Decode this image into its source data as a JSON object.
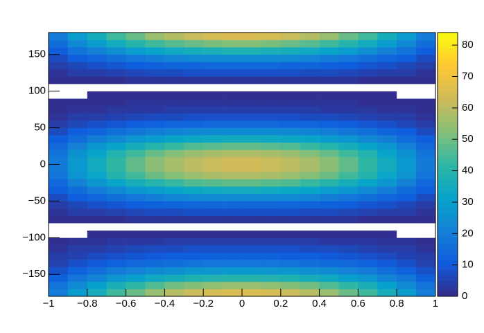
{
  "chart_data": {
    "type": "heatmap",
    "xbins": [
      -1,
      -0.9,
      -0.8,
      -0.7,
      -0.6,
      -0.5,
      -0.4,
      -0.3,
      -0.2,
      -0.1,
      0,
      0.1,
      0.2,
      0.3,
      0.4,
      0.5,
      0.6,
      0.7,
      0.8,
      0.9,
      1
    ],
    "ybins": [
      -180,
      -170,
      -160,
      -150,
      -140,
      -130,
      -120,
      -110,
      -100,
      -90,
      -80,
      -70,
      -60,
      -50,
      -40,
      -30,
      -20,
      -10,
      0,
      10,
      20,
      30,
      40,
      50,
      60,
      70,
      80,
      90,
      100,
      110,
      120,
      130,
      140,
      150,
      160,
      170,
      180
    ],
    "z": [
      [
        20,
        29,
        36,
        44,
        49,
        55,
        59,
        62,
        64,
        65,
        65,
        64,
        62,
        59,
        55,
        49,
        44,
        36,
        29,
        20
      ],
      [
        17,
        24,
        31,
        37,
        42,
        46,
        50,
        52,
        54,
        55,
        55,
        54,
        52,
        50,
        46,
        42,
        37,
        31,
        24,
        17
      ],
      [
        12,
        18,
        22,
        27,
        30,
        34,
        36,
        38,
        39,
        40,
        40,
        39,
        38,
        36,
        34,
        30,
        27,
        22,
        18,
        12
      ],
      [
        8,
        12,
        16,
        19,
        21,
        24,
        25,
        27,
        27,
        28,
        28,
        27,
        27,
        25,
        24,
        21,
        19,
        16,
        12,
        8
      ],
      [
        5,
        8,
        10,
        12,
        14,
        15,
        16,
        17,
        18,
        18,
        18,
        18,
        17,
        16,
        15,
        14,
        12,
        10,
        8,
        5
      ],
      [
        4,
        5,
        7,
        8,
        9,
        10,
        11,
        11,
        12,
        12,
        12,
        12,
        11,
        11,
        10,
        9,
        8,
        7,
        5,
        4
      ],
      [
        2,
        4,
        4,
        5,
        6,
        7,
        7,
        8,
        8,
        8,
        8,
        8,
        8,
        7,
        7,
        6,
        5,
        4,
        4,
        2
      ],
      [
        1,
        2,
        2,
        3,
        3,
        3,
        4,
        4,
        4,
        4,
        4,
        4,
        4,
        4,
        3,
        3,
        3,
        2,
        2,
        1
      ],
      [
        0,
        0,
        1,
        1,
        1,
        1,
        1,
        1,
        1,
        1,
        1,
        1,
        1,
        1,
        1,
        1,
        1,
        1,
        0,
        0
      ],
      [
        0,
        0,
        0,
        0,
        0,
        0,
        0,
        0,
        0,
        0,
        0,
        0,
        0,
        0,
        0,
        0,
        0,
        0,
        0,
        0
      ],
      [
        1,
        1,
        1,
        1,
        2,
        2,
        2,
        2,
        2,
        2,
        2,
        2,
        2,
        2,
        2,
        2,
        1,
        1,
        1,
        1
      ],
      [
        2,
        4,
        4,
        5,
        6,
        7,
        7,
        8,
        8,
        8,
        8,
        8,
        8,
        7,
        7,
        6,
        5,
        4,
        4,
        2
      ],
      [
        4,
        6,
        8,
        9,
        11,
        12,
        13,
        13,
        14,
        14,
        14,
        14,
        13,
        13,
        12,
        11,
        9,
        8,
        6,
        4
      ],
      [
        7,
        11,
        13,
        16,
        18,
        20,
        22,
        23,
        24,
        24,
        24,
        24,
        23,
        22,
        20,
        18,
        16,
        13,
        11,
        7
      ],
      [
        11,
        15,
        20,
        23,
        27,
        29,
        32,
        33,
        34,
        35,
        35,
        34,
        33,
        32,
        29,
        27,
        23,
        20,
        15,
        11
      ],
      [
        14,
        21,
        27,
        32,
        36,
        40,
        43,
        46,
        47,
        48,
        48,
        47,
        46,
        43,
        40,
        36,
        32,
        27,
        21,
        14
      ],
      [
        17,
        26,
        32,
        39,
        44,
        49,
        52,
        55,
        57,
        58,
        58,
        57,
        55,
        52,
        49,
        44,
        39,
        32,
        26,
        17
      ],
      [
        19,
        28,
        35,
        42,
        48,
        53,
        57,
        60,
        62,
        63,
        63,
        62,
        60,
        57,
        53,
        48,
        42,
        35,
        28,
        19
      ],
      [
        19,
        28,
        35,
        42,
        48,
        53,
        57,
        60,
        62,
        63,
        63,
        62,
        60,
        57,
        53,
        48,
        42,
        35,
        28,
        19
      ],
      [
        17,
        26,
        32,
        39,
        44,
        49,
        52,
        55,
        57,
        58,
        58,
        57,
        55,
        52,
        49,
        44,
        39,
        32,
        26,
        17
      ],
      [
        14,
        21,
        27,
        32,
        36,
        40,
        43,
        46,
        47,
        48,
        48,
        47,
        46,
        43,
        40,
        36,
        32,
        27,
        21,
        14
      ],
      [
        11,
        15,
        20,
        23,
        27,
        29,
        32,
        33,
        34,
        35,
        35,
        34,
        33,
        32,
        29,
        27,
        23,
        20,
        15,
        11
      ],
      [
        7,
        11,
        13,
        16,
        18,
        20,
        22,
        23,
        24,
        24,
        24,
        24,
        23,
        22,
        20,
        18,
        16,
        13,
        11,
        7
      ],
      [
        4,
        6,
        8,
        9,
        11,
        12,
        13,
        13,
        14,
        14,
        14,
        14,
        13,
        13,
        12,
        11,
        9,
        8,
        6,
        4
      ],
      [
        2,
        4,
        4,
        5,
        6,
        7,
        7,
        8,
        8,
        8,
        8,
        8,
        8,
        7,
        7,
        6,
        5,
        4,
        4,
        2
      ],
      [
        1,
        2,
        2,
        3,
        3,
        3,
        4,
        4,
        4,
        4,
        4,
        4,
        4,
        4,
        3,
        3,
        3,
        2,
        2,
        1
      ],
      [
        1,
        1,
        1,
        1,
        2,
        2,
        2,
        2,
        2,
        2,
        2,
        2,
        2,
        2,
        2,
        2,
        1,
        1,
        1,
        1
      ],
      [
        0,
        0,
        1,
        1,
        1,
        1,
        1,
        1,
        1,
        1,
        1,
        1,
        1,
        1,
        1,
        1,
        1,
        1,
        0,
        0
      ],
      [
        0,
        0,
        0,
        0,
        0,
        0,
        0,
        0,
        0,
        0,
        0,
        0,
        0,
        0,
        0,
        0,
        0,
        0,
        0,
        0
      ],
      [
        1,
        1,
        1,
        1,
        2,
        2,
        2,
        2,
        2,
        2,
        2,
        2,
        2,
        2,
        2,
        2,
        1,
        1,
        1,
        1
      ],
      [
        2,
        4,
        4,
        5,
        6,
        7,
        7,
        8,
        8,
        8,
        8,
        8,
        8,
        7,
        7,
        6,
        5,
        4,
        4,
        2
      ],
      [
        4,
        6,
        8,
        9,
        11,
        12,
        13,
        13,
        14,
        14,
        14,
        14,
        13,
        13,
        12,
        11,
        9,
        8,
        6,
        4
      ],
      [
        7,
        11,
        13,
        16,
        18,
        20,
        22,
        23,
        24,
        24,
        24,
        24,
        23,
        22,
        20,
        18,
        16,
        13,
        11,
        7
      ],
      [
        11,
        17,
        21,
        25,
        29,
        32,
        34,
        36,
        37,
        38,
        38,
        37,
        36,
        34,
        32,
        29,
        25,
        21,
        17,
        11
      ],
      [
        16,
        23,
        29,
        35,
        40,
        44,
        47,
        49,
        51,
        52,
        52,
        51,
        49,
        47,
        44,
        40,
        35,
        29,
        23,
        16
      ],
      [
        20,
        29,
        36,
        44,
        49,
        55,
        59,
        62,
        64,
        65,
        65,
        64,
        62,
        59,
        55,
        49,
        44,
        36,
        29,
        20
      ]
    ],
    "xlim": [
      -1,
      1
    ],
    "xticks": [
      {
        "value": -1,
        "label": "−1"
      },
      {
        "value": -0.8,
        "label": "−0.8"
      },
      {
        "value": -0.6,
        "label": "−0.6"
      },
      {
        "value": -0.4,
        "label": "−0.4"
      },
      {
        "value": -0.2,
        "label": "−0.2"
      },
      0,
      0.2,
      0.4,
      0.6,
      0.8,
      1
    ],
    "ylim": [
      -180,
      180
    ],
    "yticks": [
      {
        "value": -150,
        "label": "−150"
      },
      {
        "value": -100,
        "label": "−100"
      },
      {
        "value": -50,
        "label": "−50"
      },
      0,
      50,
      100,
      150
    ],
    "zlim": [
      0,
      84
    ],
    "zticks": [
      0,
      10,
      20,
      30,
      40,
      50,
      60,
      70,
      80
    ],
    "colormap": [
      "#352a87",
      "#0f5cdd",
      "#1481d6",
      "#06a4ca",
      "#2eb7a4",
      "#87bf77",
      "#d1bb59",
      "#fec832",
      "#f9fb0e"
    ],
    "empty_color": "#ffffff"
  }
}
